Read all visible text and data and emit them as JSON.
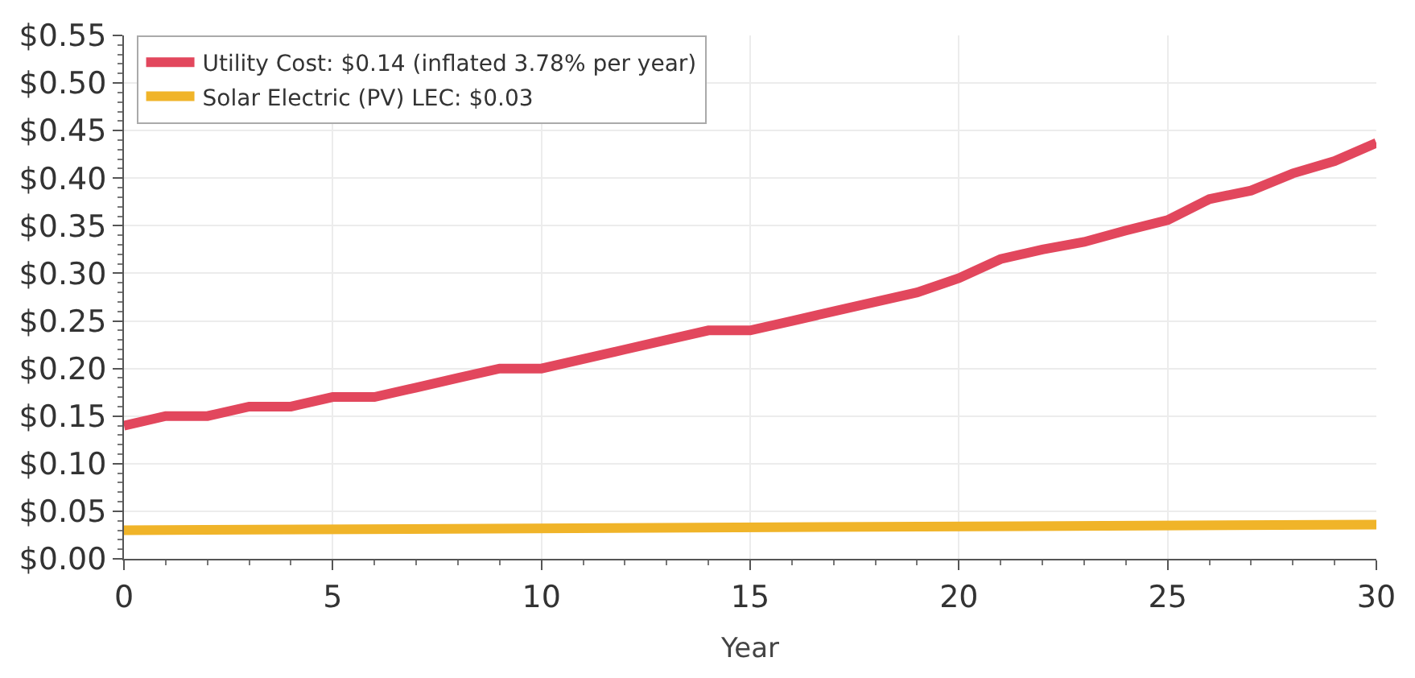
{
  "chart_data": {
    "type": "line",
    "xlabel": "Year",
    "x": [
      0,
      1,
      2,
      3,
      4,
      5,
      6,
      7,
      8,
      9,
      10,
      11,
      12,
      13,
      14,
      15,
      16,
      17,
      18,
      19,
      20,
      21,
      22,
      23,
      24,
      25,
      26,
      27,
      28,
      29,
      30
    ],
    "series": [
      {
        "name": "Utility Cost: $0.14 (inflated 3.78% per year)",
        "color": "#e2475d",
        "values": [
          0.14,
          0.15,
          0.15,
          0.16,
          0.16,
          0.17,
          0.17,
          0.18,
          0.19,
          0.2,
          0.2,
          0.21,
          0.22,
          0.23,
          0.24,
          0.24,
          0.25,
          0.26,
          0.27,
          0.28,
          0.295,
          0.315,
          0.325,
          0.333,
          0.345,
          0.356,
          0.378,
          0.387,
          0.405,
          0.418,
          0.437
        ]
      },
      {
        "name": "Solar Electric (PV) LEC: $0.03",
        "color": "#f0b429",
        "x": [
          0,
          30
        ],
        "values": [
          0.03,
          0.036
        ]
      }
    ],
    "xlim": [
      0,
      30
    ],
    "xticks": [
      0,
      5,
      10,
      15,
      20,
      25,
      30
    ],
    "ylim": [
      0,
      0.55
    ],
    "yticks": [
      {
        "value": 0,
        "label": "$0.00"
      },
      {
        "value": 0.05,
        "label": "$0.05"
      },
      {
        "value": 0.1,
        "label": "$0.10"
      },
      {
        "value": 0.15,
        "label": "$0.15"
      },
      {
        "value": 0.2,
        "label": "$0.20"
      },
      {
        "value": 0.25,
        "label": "$0.25"
      },
      {
        "value": 0.3,
        "label": "$0.30"
      },
      {
        "value": 0.35,
        "label": "$0.35"
      },
      {
        "value": 0.4,
        "label": "$0.40"
      },
      {
        "value": 0.45,
        "label": "$0.45"
      },
      {
        "value": 0.5,
        "label": "$0.50"
      },
      {
        "value": 0.55,
        "label": "$0.55"
      }
    ],
    "grid": true,
    "legend": "top left",
    "marker": "none",
    "line_style": "solid"
  }
}
